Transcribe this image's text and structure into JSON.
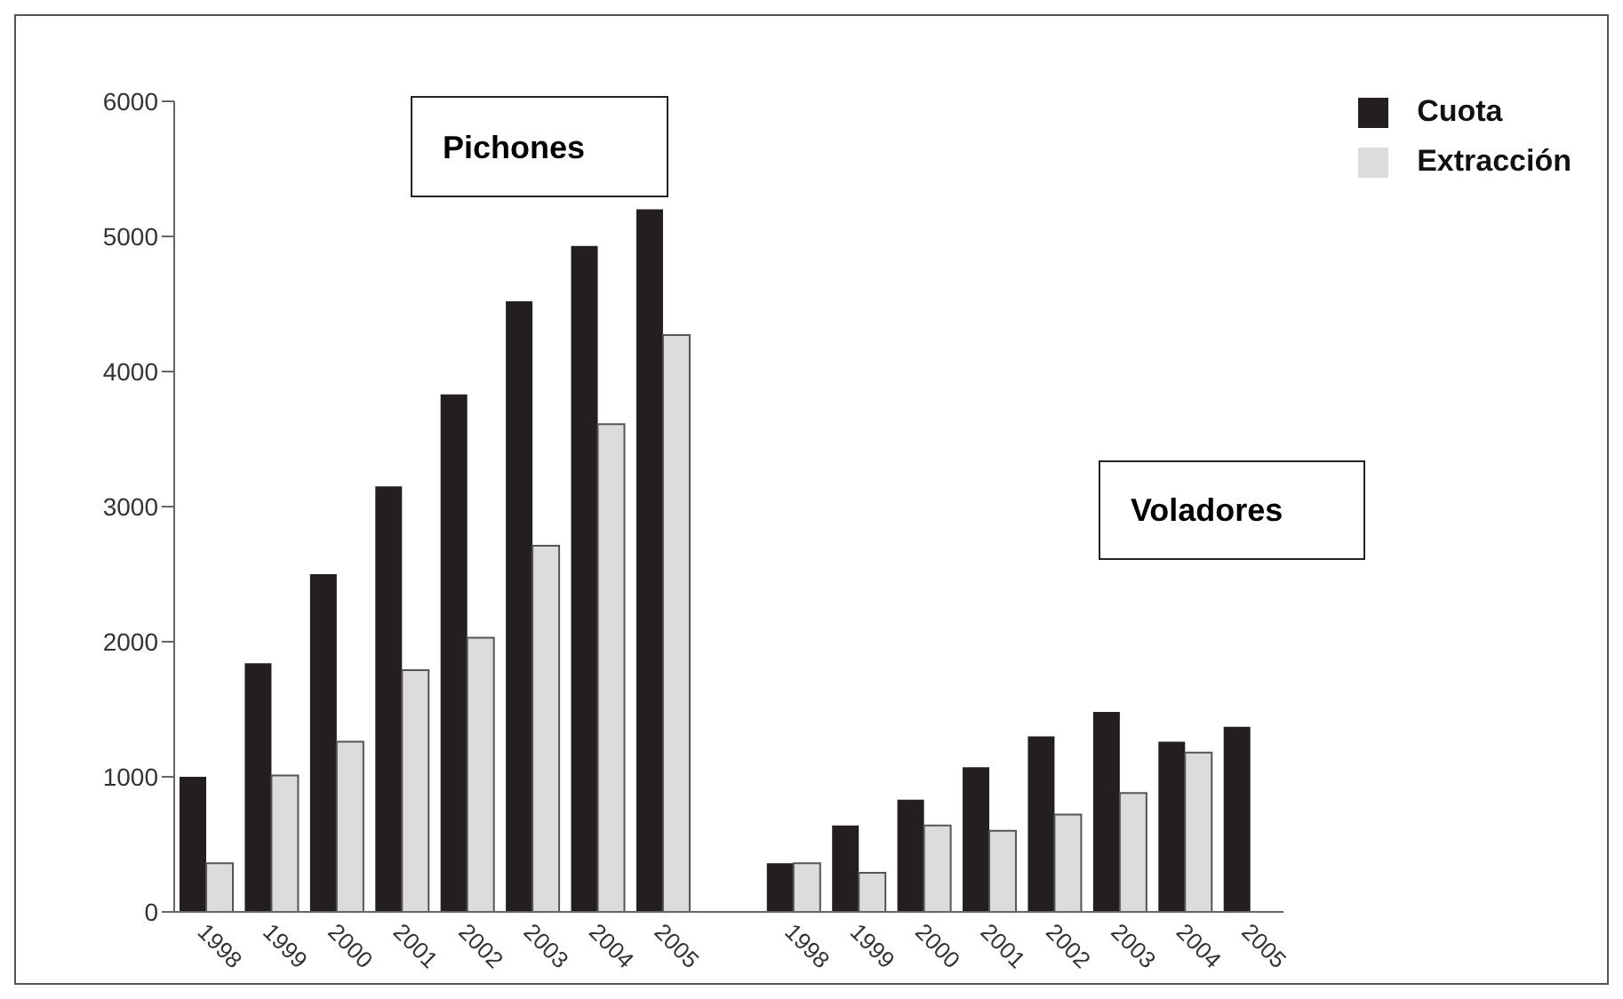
{
  "chart_data": {
    "type": "bar",
    "categories": [
      "1998",
      "1999",
      "2000",
      "2001",
      "2002",
      "2003",
      "2004",
      "2005",
      null,
      "1998",
      "1999",
      "2000",
      "2001",
      "2002",
      "2003",
      "2004",
      "2005"
    ],
    "series": [
      {
        "name": "Cuota",
        "color": "#231f20",
        "values": [
          1000,
          1840,
          2500,
          3150,
          3830,
          4520,
          4930,
          5200,
          null,
          360,
          640,
          830,
          1070,
          1300,
          1480,
          1260,
          1370
        ]
      },
      {
        "name": "Extracción",
        "color": "#dcdcdc",
        "values": [
          360,
          1010,
          1260,
          1790,
          2030,
          2710,
          3610,
          4270,
          null,
          360,
          290,
          640,
          600,
          720,
          880,
          1180,
          null
        ]
      }
    ],
    "annotations": [
      "Pichones",
      "Voladores"
    ],
    "ylim": [
      0,
      6000
    ],
    "yticks": [
      0,
      1000,
      2000,
      3000,
      4000,
      5000,
      6000
    ],
    "grid": false,
    "legend": "top right"
  }
}
